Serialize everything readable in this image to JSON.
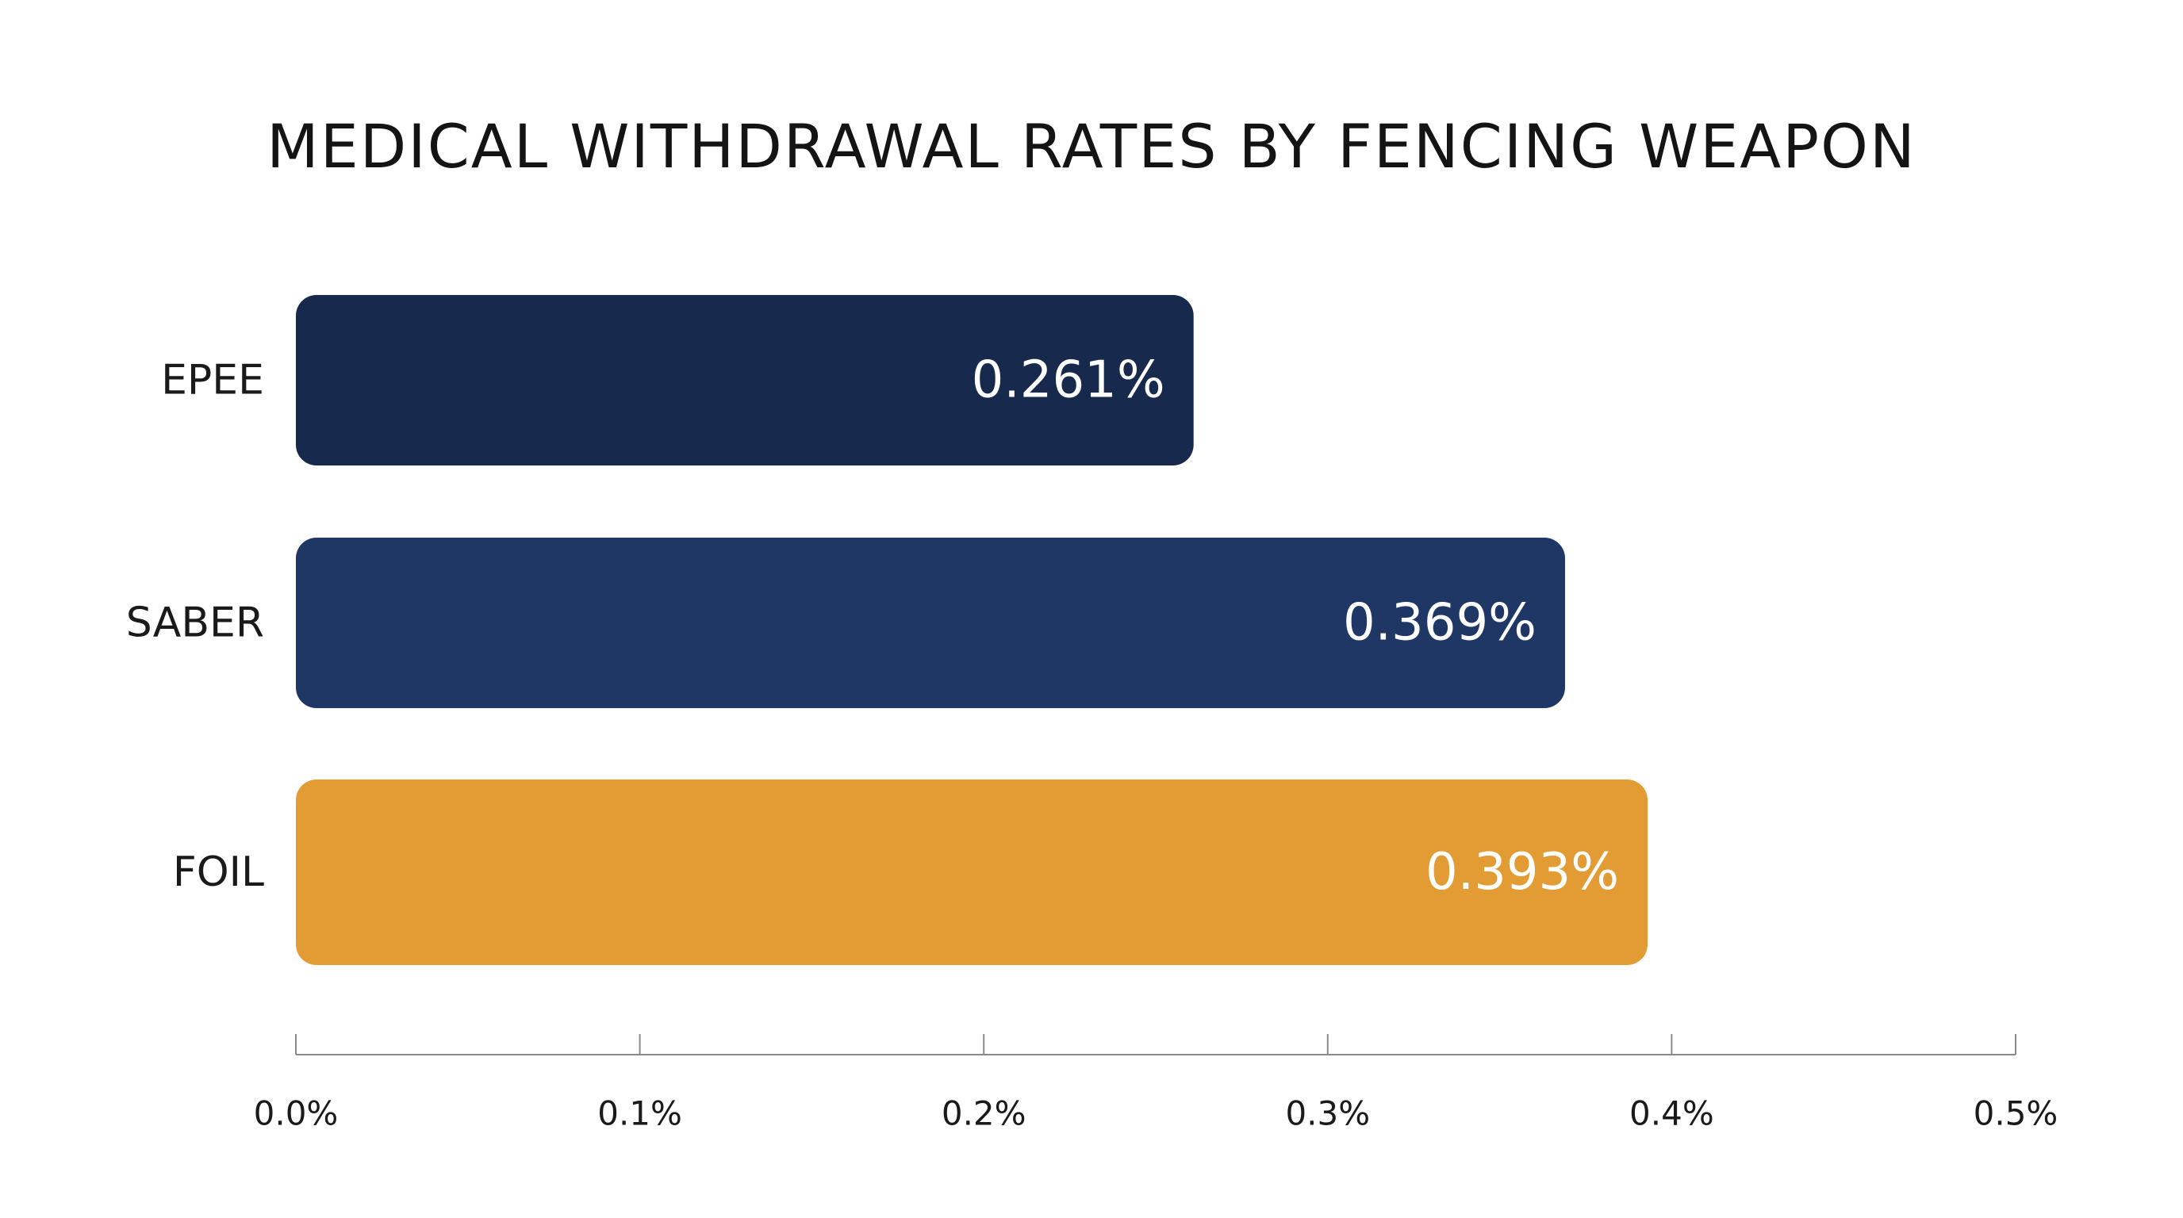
{
  "chart_data": {
    "type": "bar",
    "orientation": "horizontal",
    "title": "MEDICAL WITHDRAWAL RATES BY FENCING WEAPON",
    "categories": [
      "EPEE",
      "SABER",
      "FOIL"
    ],
    "values": [
      0.261,
      0.369,
      0.393
    ],
    "value_labels": [
      "0.261%",
      "0.369%",
      "0.393%"
    ],
    "colors": [
      "#172a4d",
      "#1f3765",
      "#e29c33"
    ],
    "xlim": [
      0,
      0.5
    ],
    "x_ticks": [
      0.0,
      0.1,
      0.2,
      0.3,
      0.4,
      0.5
    ],
    "x_tick_labels": [
      "0.0%",
      "0.1%",
      "0.2%",
      "0.3%",
      "0.4%",
      "0.5%"
    ],
    "xlabel": "",
    "ylabel": "",
    "grid": false,
    "legend": "none"
  }
}
